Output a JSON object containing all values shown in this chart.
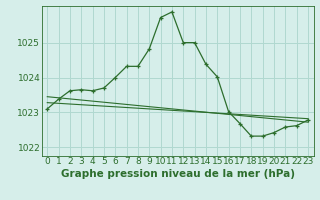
{
  "title": "Graphe pression niveau de la mer (hPa)",
  "background_color": "#d6eeea",
  "grid_color": "#b0d8d0",
  "line_color": "#2d6e2d",
  "xlim": [
    -0.5,
    23.5
  ],
  "ylim": [
    1021.75,
    1026.05
  ],
  "yticks": [
    1022,
    1023,
    1024,
    1025
  ],
  "xticks": [
    0,
    1,
    2,
    3,
    4,
    5,
    6,
    7,
    8,
    9,
    10,
    11,
    12,
    13,
    14,
    15,
    16,
    17,
    18,
    19,
    20,
    21,
    22,
    23
  ],
  "line1_x": [
    0,
    1,
    2,
    3,
    4,
    5,
    6,
    7,
    8,
    9,
    10,
    11,
    12,
    13,
    14,
    15,
    16,
    17,
    18,
    19,
    20,
    21,
    22,
    23
  ],
  "line1_y": [
    1023.1,
    1023.38,
    1023.62,
    1023.65,
    1023.62,
    1023.7,
    1024.0,
    1024.32,
    1024.32,
    1024.82,
    1025.72,
    1025.88,
    1025.0,
    1025.0,
    1024.38,
    1024.02,
    1023.02,
    1022.68,
    1022.32,
    1022.32,
    1022.42,
    1022.58,
    1022.62,
    1022.78
  ],
  "line2_x": [
    0,
    23
  ],
  "line2_y": [
    1023.45,
    1022.72
  ],
  "line3_x": [
    0,
    23
  ],
  "line3_y": [
    1023.28,
    1022.82
  ],
  "title_fontsize": 7.5,
  "tick_fontsize": 6.5
}
